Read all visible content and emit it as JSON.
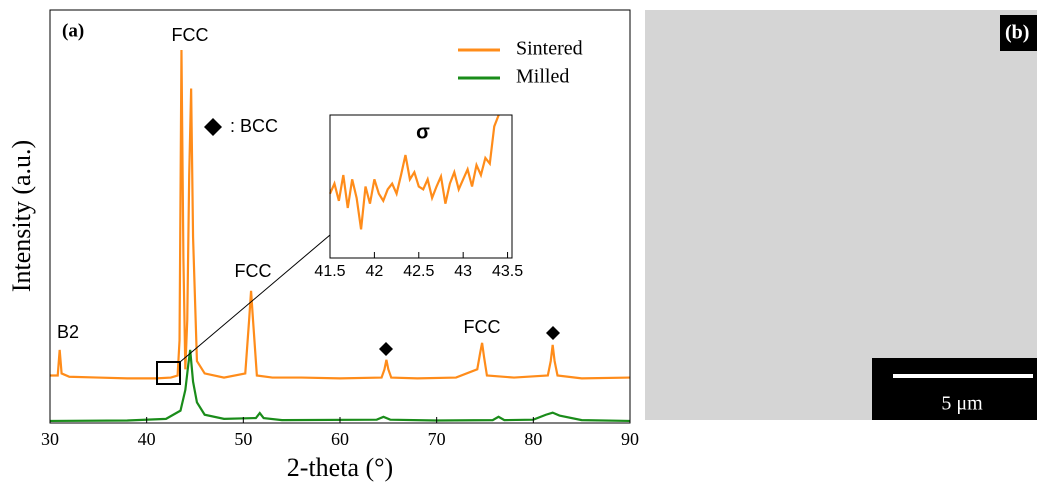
{
  "chart_data": [
    {
      "type": "line",
      "panel_label": "(a)",
      "xlabel": "2-theta (°)",
      "ylabel": "Intensity (a.u.)",
      "xlim": [
        30,
        90
      ],
      "xticks": [
        30,
        40,
        50,
        60,
        70,
        80,
        90
      ],
      "ylim": [
        0,
        100
      ],
      "legend": "upper right",
      "series": [
        {
          "name": "Sintered",
          "color": "#ff8c1a",
          "x": [
            30,
            30.8,
            31,
            31.2,
            32,
            35,
            38,
            41,
            42.5,
            43.2,
            43.4,
            43.6,
            43.8,
            44.0,
            44.2,
            44.4,
            44.6,
            44.8,
            45.2,
            46,
            48,
            50.2,
            50.6,
            50.8,
            51.0,
            51.4,
            53,
            56,
            60,
            64.3,
            64.6,
            64.8,
            65.0,
            65.3,
            68,
            72,
            74.2,
            74.5,
            74.7,
            74.9,
            75.2,
            78,
            81.5,
            81.8,
            82,
            82.2,
            82.5,
            85,
            90
          ],
          "values": [
            11.5,
            11.5,
            17.7,
            12,
            11.2,
            11,
            10.8,
            10.8,
            11,
            11.5,
            20,
            90.3,
            40,
            13,
            25,
            60,
            81,
            45,
            15,
            12,
            11,
            12,
            25,
            32,
            25,
            11.5,
            11,
            11,
            10.8,
            11,
            13,
            15.3,
            13,
            11,
            10.8,
            11,
            13,
            17,
            19.4,
            16,
            11.5,
            11,
            11.5,
            15,
            18.9,
            15,
            11.5,
            10.8,
            11
          ]
        },
        {
          "name": "Milled",
          "color": "#1a8c1a",
          "x": [
            30,
            38,
            42,
            43.5,
            44,
            44.3,
            44.5,
            44.8,
            45.2,
            46,
            48,
            51.3,
            51.7,
            52.1,
            54,
            63.8,
            64.5,
            65.2,
            70,
            75.8,
            76.4,
            77,
            80,
            81.3,
            82,
            82.7,
            85,
            90
          ],
          "values": [
            0.5,
            0.6,
            1,
            3,
            8,
            14,
            17.7,
            10,
            5,
            2,
            1,
            1.2,
            2.4,
            1.2,
            0.7,
            0.8,
            1.5,
            0.8,
            0.6,
            0.7,
            1.5,
            0.7,
            0.8,
            2,
            2.5,
            1.8,
            0.7,
            0.5
          ]
        }
      ],
      "annotations": [
        "FCC",
        "FCC",
        "FCC",
        "B2",
        ": BCC"
      ]
    },
    {
      "type": "line",
      "annotations": [
        "σ"
      ],
      "xlim": [
        41.5,
        43.55
      ],
      "xticks": [
        41.5,
        42,
        42.5,
        43,
        43.5
      ],
      "ylim": [
        0,
        100
      ],
      "series": [
        {
          "color": "#ff8c1a",
          "x": [
            41.5,
            41.55,
            41.6,
            41.65,
            41.7,
            41.75,
            41.8,
            41.85,
            41.9,
            41.95,
            42.0,
            42.05,
            42.1,
            42.15,
            42.2,
            42.25,
            42.3,
            42.35,
            42.4,
            42.45,
            42.5,
            42.55,
            42.6,
            42.65,
            42.7,
            42.75,
            42.8,
            42.85,
            42.9,
            42.95,
            43.0,
            43.05,
            43.1,
            43.15,
            43.2,
            43.25,
            43.3,
            43.35,
            43.4
          ],
          "values": [
            45,
            52,
            40,
            58,
            35,
            55,
            42,
            20,
            50,
            38,
            55,
            45,
            40,
            48,
            52,
            45,
            58,
            72,
            55,
            60,
            50,
            48,
            55,
            42,
            50,
            57,
            38,
            52,
            60,
            48,
            55,
            62,
            50,
            65,
            58,
            70,
            66,
            92,
            100
          ]
        }
      ]
    }
  ],
  "micrograph": {
    "panel_label": "(b)",
    "scale_bar": "5 μm"
  }
}
